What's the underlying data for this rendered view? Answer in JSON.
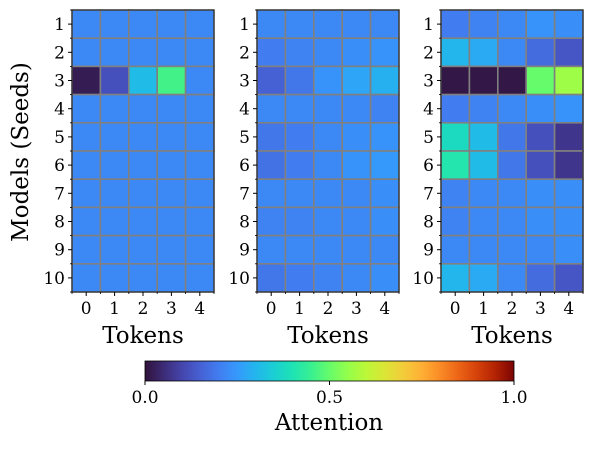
{
  "chart_data": [
    {
      "type": "heatmap",
      "ylabel": "Models (Seeds)",
      "xlabel": "Tokens",
      "x": [
        "0",
        "1",
        "2",
        "3",
        "4"
      ],
      "y": [
        "1",
        "2",
        "3",
        "4",
        "5",
        "6",
        "7",
        "8",
        "9",
        "10"
      ],
      "values": [
        [
          0.22,
          0.22,
          0.22,
          0.22,
          0.22
        ],
        [
          0.22,
          0.22,
          0.22,
          0.22,
          0.22
        ],
        [
          0.02,
          0.12,
          0.31,
          0.46,
          0.22
        ],
        [
          0.22,
          0.22,
          0.22,
          0.22,
          0.22
        ],
        [
          0.22,
          0.22,
          0.22,
          0.22,
          0.22
        ],
        [
          0.22,
          0.22,
          0.22,
          0.22,
          0.22
        ],
        [
          0.22,
          0.22,
          0.22,
          0.22,
          0.22
        ],
        [
          0.22,
          0.22,
          0.22,
          0.22,
          0.22
        ],
        [
          0.22,
          0.22,
          0.22,
          0.22,
          0.22
        ],
        [
          0.22,
          0.22,
          0.22,
          0.22,
          0.22
        ]
      ]
    },
    {
      "type": "heatmap",
      "xlabel": "Tokens",
      "x": [
        "0",
        "1",
        "2",
        "3",
        "4"
      ],
      "y": [
        "1",
        "2",
        "3",
        "4",
        "5",
        "6",
        "7",
        "8",
        "9",
        "10"
      ],
      "values": [
        [
          0.22,
          0.22,
          0.22,
          0.22,
          0.22
        ],
        [
          0.2,
          0.21,
          0.22,
          0.23,
          0.24
        ],
        [
          0.15,
          0.19,
          0.24,
          0.27,
          0.29
        ],
        [
          0.22,
          0.22,
          0.22,
          0.22,
          0.21
        ],
        [
          0.19,
          0.2,
          0.22,
          0.23,
          0.24
        ],
        [
          0.18,
          0.2,
          0.22,
          0.24,
          0.25
        ],
        [
          0.22,
          0.22,
          0.22,
          0.22,
          0.23
        ],
        [
          0.21,
          0.21,
          0.22,
          0.22,
          0.23
        ],
        [
          0.22,
          0.22,
          0.22,
          0.22,
          0.22
        ],
        [
          0.19,
          0.2,
          0.21,
          0.22,
          0.23
        ]
      ]
    },
    {
      "type": "heatmap",
      "xlabel": "Tokens",
      "x": [
        "0",
        "1",
        "2",
        "3",
        "4"
      ],
      "y": [
        "1",
        "2",
        "3",
        "4",
        "5",
        "6",
        "7",
        "8",
        "9",
        "10"
      ],
      "values": [
        [
          0.2,
          0.21,
          0.22,
          0.24,
          0.23
        ],
        [
          0.3,
          0.28,
          0.22,
          0.17,
          0.13
        ],
        [
          0.01,
          0.01,
          0.01,
          0.5,
          0.56
        ],
        [
          0.2,
          0.21,
          0.22,
          0.23,
          0.24
        ],
        [
          0.38,
          0.31,
          0.19,
          0.12,
          0.07
        ],
        [
          0.41,
          0.31,
          0.19,
          0.12,
          0.07
        ],
        [
          0.21,
          0.22,
          0.22,
          0.23,
          0.23
        ],
        [
          0.21,
          0.22,
          0.22,
          0.23,
          0.23
        ],
        [
          0.22,
          0.22,
          0.22,
          0.22,
          0.23
        ],
        [
          0.3,
          0.28,
          0.22,
          0.17,
          0.13
        ]
      ]
    }
  ],
  "colorbar": {
    "label": "Attention",
    "ticks": [
      "0.0",
      "0.5",
      "1.0"
    ],
    "tick_values": [
      0.0,
      0.5,
      1.0
    ],
    "range": [
      0.0,
      1.0
    ],
    "colormap": "turbo"
  },
  "colors": {
    "grid": "#808080",
    "axis": "#000000",
    "background": "#ffffff"
  }
}
